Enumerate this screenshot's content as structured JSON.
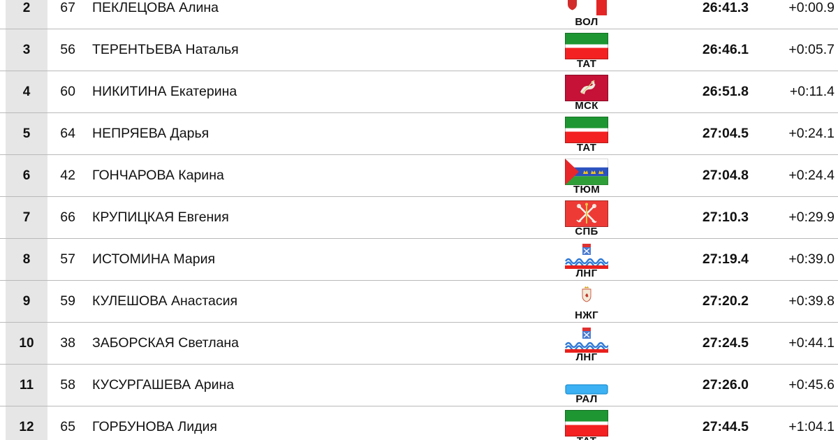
{
  "table": {
    "rows": [
      {
        "rank": "2",
        "bib": "67",
        "name": "ПЕКЛЕЦОВА Алина",
        "region_code": "ВОЛ",
        "flag": "vol",
        "time": "26:41.3",
        "gap": "+0:00.9"
      },
      {
        "rank": "3",
        "bib": "56",
        "name": "ТЕРЕНТЬЕВА Наталья",
        "region_code": "ТАТ",
        "flag": "tat",
        "time": "26:46.1",
        "gap": "+0:05.7"
      },
      {
        "rank": "4",
        "bib": "60",
        "name": "НИКИТИНА Екатерина",
        "region_code": "МСК",
        "flag": "msk",
        "time": "26:51.8",
        "gap": "+0:11.4"
      },
      {
        "rank": "5",
        "bib": "64",
        "name": "НЕПРЯЕВА Дарья",
        "region_code": "ТАТ",
        "flag": "tat",
        "time": "27:04.5",
        "gap": "+0:24.1"
      },
      {
        "rank": "6",
        "bib": "42",
        "name": "ГОНЧАРОВА Карина",
        "region_code": "ТЮМ",
        "flag": "tyu",
        "time": "27:04.8",
        "gap": "+0:24.4"
      },
      {
        "rank": "7",
        "bib": "66",
        "name": "КРУПИЦКАЯ Евгения",
        "region_code": "СПБ",
        "flag": "spb",
        "time": "27:10.3",
        "gap": "+0:29.9"
      },
      {
        "rank": "8",
        "bib": "57",
        "name": "ИСТОМИНА Мария",
        "region_code": "ЛНГ",
        "flag": "lng",
        "time": "27:19.4",
        "gap": "+0:39.0"
      },
      {
        "rank": "9",
        "bib": "59",
        "name": "КУЛЕШОВА Анастасия",
        "region_code": "НЖГ",
        "flag": "nzg",
        "time": "27:20.2",
        "gap": "+0:39.8"
      },
      {
        "rank": "10",
        "bib": "38",
        "name": "ЗАБОРСКАЯ Светлана",
        "region_code": "ЛНГ",
        "flag": "lng",
        "time": "27:24.5",
        "gap": "+0:44.1"
      },
      {
        "rank": "11",
        "bib": "58",
        "name": "КУСУРГАШЕВА Арина",
        "region_code": "РАЛ",
        "flag": "ral",
        "time": "27:26.0",
        "gap": "+0:45.6"
      },
      {
        "rank": "12",
        "bib": "65",
        "name": "ГОРБУНОВА Лидия",
        "region_code": "ТАТ",
        "flag": "tat",
        "time": "27:44.5",
        "gap": "+1:04.1"
      }
    ]
  },
  "colors": {
    "rank_column_bg": "#e6e6e6",
    "row_divider": "#b9b9b9",
    "text": "#111111"
  }
}
